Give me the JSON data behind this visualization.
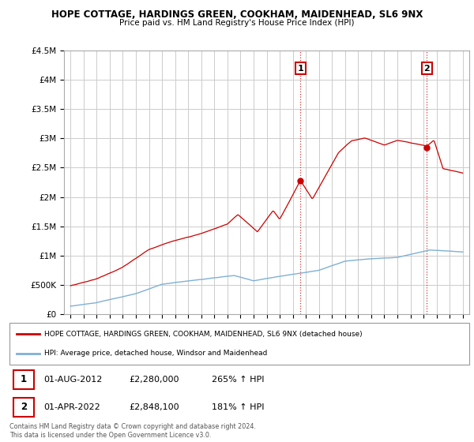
{
  "title1": "HOPE COTTAGE, HARDINGS GREEN, COOKHAM, MAIDENHEAD, SL6 9NX",
  "title2": "Price paid vs. HM Land Registry's House Price Index (HPI)",
  "ylim": [
    0,
    4500000
  ],
  "yticks": [
    0,
    500000,
    1000000,
    1500000,
    2000000,
    2500000,
    3000000,
    3500000,
    4000000,
    4500000
  ],
  "ytick_labels": [
    "£0",
    "£500K",
    "£1M",
    "£1.5M",
    "£2M",
    "£2.5M",
    "£3M",
    "£3.5M",
    "£4M",
    "£4.5M"
  ],
  "xlim_start": 1994.5,
  "xlim_end": 2025.5,
  "background_color": "#ffffff",
  "grid_color": "#cccccc",
  "hpi_color": "#7eb0d5",
  "price_color": "#cc0000",
  "sale1_date": 2012.58,
  "sale1_price": 2280000,
  "sale2_date": 2022.25,
  "sale2_price": 2848100,
  "legend_label_price": "HOPE COTTAGE, HARDINGS GREEN, COOKHAM, MAIDENHEAD, SL6 9NX (detached house)",
  "legend_label_hpi": "HPI: Average price, detached house, Windsor and Maidenhead",
  "annotation1_date": "01-AUG-2012",
  "annotation1_price": "£2,280,000",
  "annotation1_hpi": "265% ↑ HPI",
  "annotation2_date": "01-APR-2022",
  "annotation2_price": "£2,848,100",
  "annotation2_hpi": "181% ↑ HPI",
  "footnote": "Contains HM Land Registry data © Crown copyright and database right 2024.\nThis data is licensed under the Open Government Licence v3.0."
}
